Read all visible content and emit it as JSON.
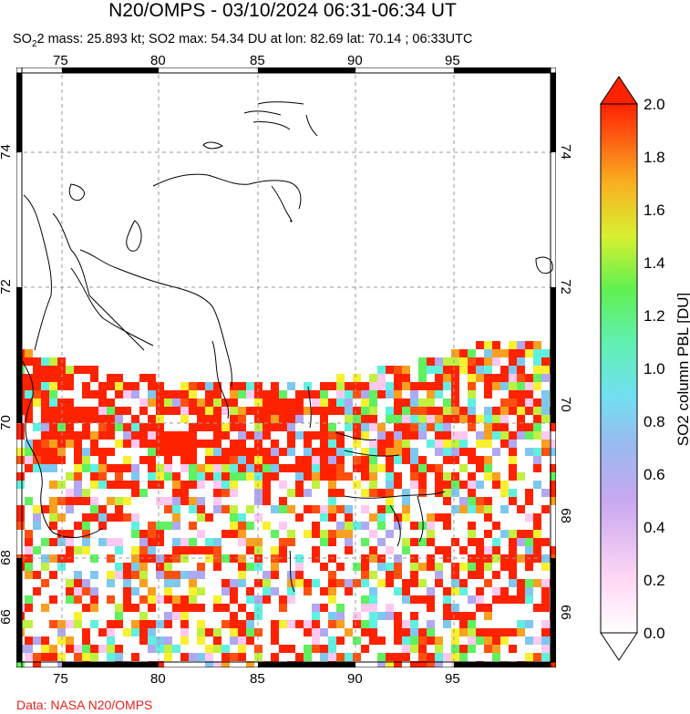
{
  "header": {
    "title": "N20/OMPS - 03/10/2024 06:31-06:34 UT",
    "subtitle_prefix": "SO",
    "subtitle_text": "2 mass: 25.893 kt; SO2 max: 54.34 DU at lon: 82.69 lat: 70.14 ; 06:33UTC"
  },
  "map": {
    "lon_ticks": [
      "75",
      "80",
      "85",
      "90",
      "95"
    ],
    "lat_ticks": [
      "74",
      "72",
      "70",
      "68",
      "66"
    ],
    "lon_range": [
      72.5,
      99.5
    ],
    "lat_range": [
      65.2,
      75.2
    ],
    "so2_swath_color": "#ff2200"
  },
  "colorbar": {
    "title": "SO2 column PBL [DU]",
    "labels": [
      "2.0",
      "1.8",
      "1.6",
      "1.4",
      "1.2",
      "1.0",
      "0.8",
      "0.6",
      "0.4",
      "0.2",
      "0.0"
    ],
    "min": 0.0,
    "max": 2.0,
    "colors": [
      "#ffffff",
      "#ffc8f0",
      "#b0a8f0",
      "#7ec8f0",
      "#60f0e0",
      "#60f060",
      "#c0f040",
      "#f8f030",
      "#f8a020",
      "#ff5010",
      "#ff2200"
    ]
  },
  "footer": {
    "credit": "Data: NASA N20/OMPS"
  }
}
